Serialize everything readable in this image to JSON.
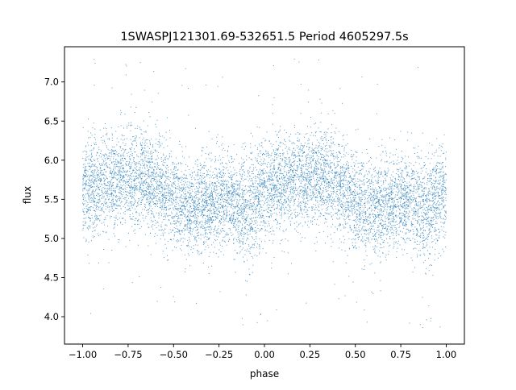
{
  "chart_data": {
    "type": "scatter",
    "title": "1SWASPJ121301.69-532651.5 Period 4605297.5s",
    "xlabel": "phase",
    "ylabel": "flux",
    "xlim": [
      -1.1,
      1.1
    ],
    "ylim": [
      3.65,
      7.45
    ],
    "x_ticks": [
      -1.0,
      -0.75,
      -0.5,
      -0.25,
      0.0,
      0.25,
      0.5,
      0.75,
      1.0
    ],
    "x_tick_labels": [
      "−1.00",
      "−0.75",
      "−0.50",
      "−0.25",
      "0.00",
      "0.25",
      "0.50",
      "0.75",
      "1.00"
    ],
    "y_ticks": [
      4.0,
      4.5,
      5.0,
      5.5,
      6.0,
      6.5,
      7.0
    ],
    "y_tick_labels": [
      "4.0",
      "4.5",
      "5.0",
      "5.5",
      "6.0",
      "6.5",
      "7.0"
    ],
    "grid": false,
    "legend": "none",
    "marker_color": "#1f77b4",
    "series": [
      {
        "phase_range": [
          -1.0,
          1.0
        ],
        "binned_profile": {
          "phase": [
            -1.0,
            -0.9,
            -0.8,
            -0.7,
            -0.6,
            -0.5,
            -0.4,
            -0.3,
            -0.2,
            -0.1,
            0.0,
            0.1,
            0.2,
            0.3,
            0.4,
            0.5,
            0.6,
            0.7,
            0.8,
            0.9,
            1.0
          ],
          "mean_flux": [
            5.65,
            5.68,
            5.75,
            5.8,
            5.7,
            5.45,
            5.38,
            5.45,
            5.5,
            5.35,
            5.65,
            5.68,
            5.75,
            5.8,
            5.7,
            5.45,
            5.38,
            5.45,
            5.5,
            5.35,
            5.65
          ],
          "spread": [
            0.32,
            0.3,
            0.3,
            0.32,
            0.3,
            0.3,
            0.3,
            0.3,
            0.3,
            0.32,
            0.32,
            0.3,
            0.3,
            0.32,
            0.3,
            0.3,
            0.3,
            0.3,
            0.3,
            0.32,
            0.32
          ]
        },
        "flux_extent": [
          3.85,
          7.3
        ]
      }
    ]
  }
}
